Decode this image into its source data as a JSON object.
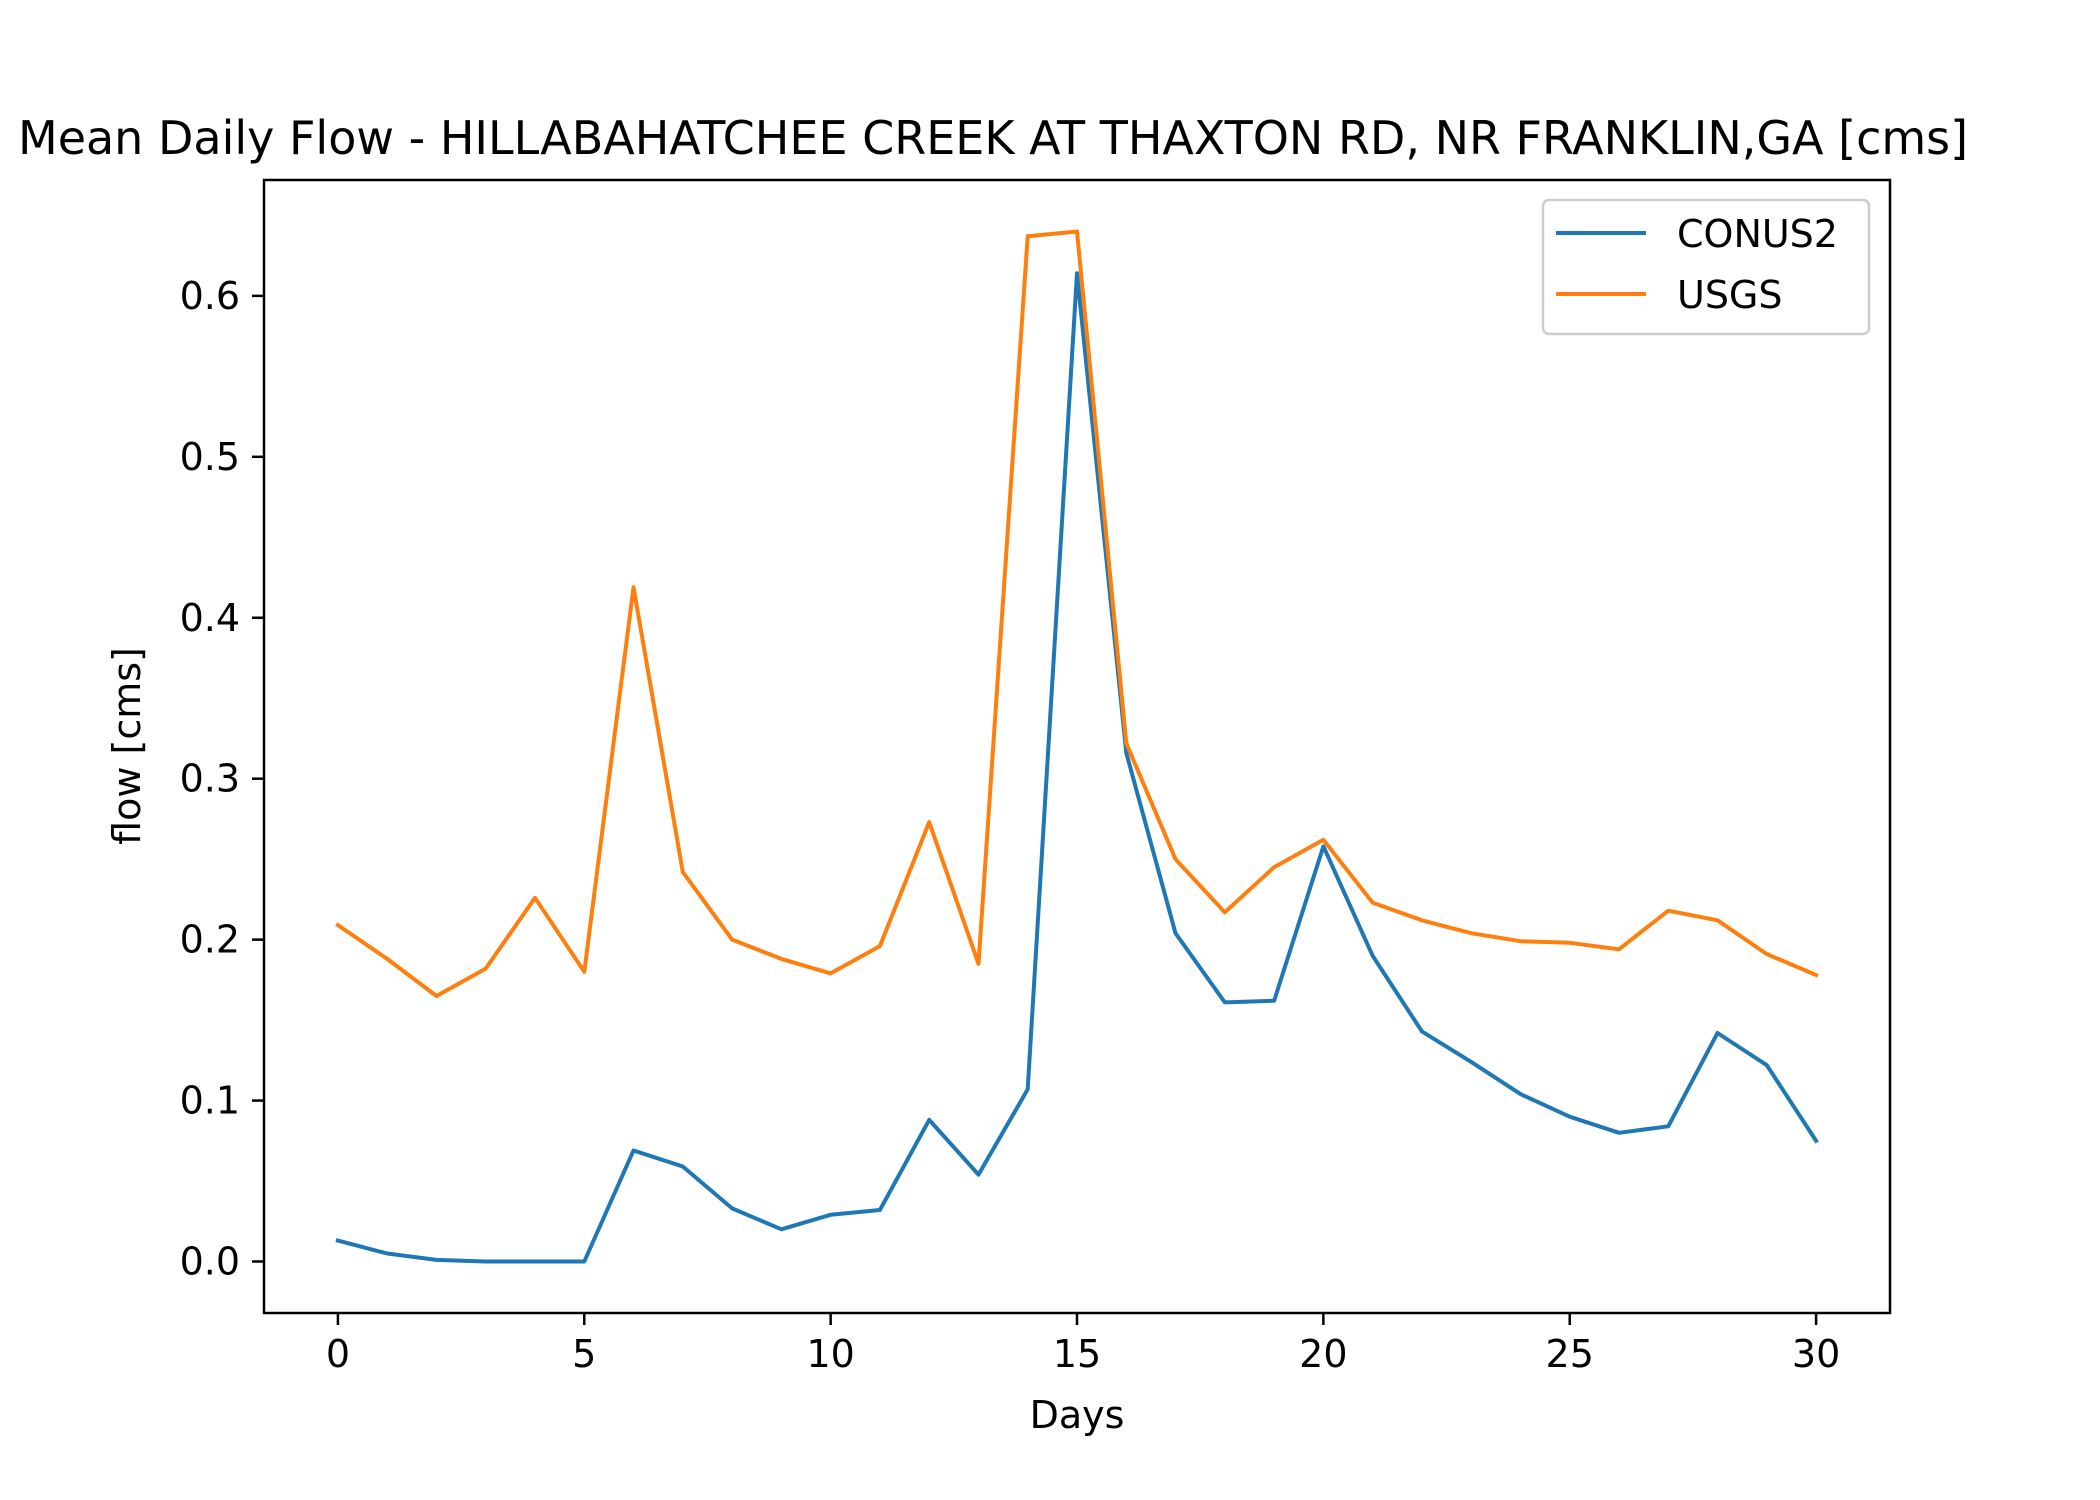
{
  "chart_data": {
    "type": "line",
    "title": "Mean Daily Flow - HILLABAHATCHEE CREEK AT THAXTON RD, NR FRANKLIN,GA [cms]",
    "xlabel": "Days",
    "ylabel": "flow [cms]",
    "xlim": [
      -1.5,
      31.5
    ],
    "ylim": [
      -0.032,
      0.672
    ],
    "xticks": [
      0,
      5,
      10,
      15,
      20,
      25,
      30
    ],
    "yticks": [
      0.0,
      0.1,
      0.2,
      0.3,
      0.4,
      0.5,
      0.6
    ],
    "grid": false,
    "legend": "top-right",
    "x": [
      0,
      1,
      2,
      3,
      4,
      5,
      6,
      7,
      8,
      9,
      10,
      11,
      12,
      13,
      14,
      15,
      16,
      17,
      18,
      19,
      20,
      21,
      22,
      23,
      24,
      25,
      26,
      27,
      28,
      29,
      30
    ],
    "series": [
      {
        "name": "CONUS2",
        "color": "#1f77b4",
        "values": [
          0.013,
          0.005,
          0.001,
          0.0,
          0.0,
          0.0,
          0.069,
          0.059,
          0.033,
          0.02,
          0.029,
          0.032,
          0.088,
          0.054,
          0.107,
          0.614,
          0.316,
          0.204,
          0.161,
          0.162,
          0.258,
          0.19,
          0.143,
          0.124,
          0.104,
          0.09,
          0.08,
          0.084,
          0.142,
          0.122,
          0.075
        ]
      },
      {
        "name": "USGS",
        "color": "#ff7f0e",
        "values": [
          0.209,
          0.188,
          0.165,
          0.182,
          0.226,
          0.18,
          0.419,
          0.242,
          0.2,
          0.188,
          0.179,
          0.196,
          0.273,
          0.185,
          0.637,
          0.64,
          0.322,
          0.25,
          0.217,
          0.245,
          0.262,
          0.223,
          0.212,
          0.204,
          0.199,
          0.198,
          0.194,
          0.218,
          0.212,
          0.191,
          0.178
        ]
      }
    ]
  }
}
